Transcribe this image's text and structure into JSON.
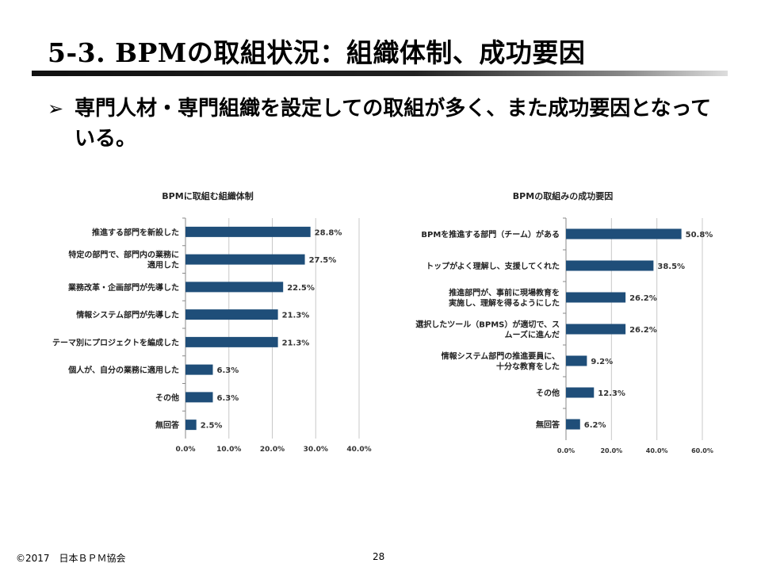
{
  "header": {
    "title": "5-3. BPMの取組状況：組織体制、成功要因"
  },
  "bullet": {
    "marker": "➢",
    "text": "専門人材・専門組織を設定しての取組が多く、また成功要因となっている。"
  },
  "chart_data": [
    {
      "type": "bar",
      "orientation": "horizontal",
      "title": "BPMに取組む組織体制",
      "categories": [
        [
          "推進する部門を新設した"
        ],
        [
          "特定の部門で、部門内の業務に",
          "適用した"
        ],
        [
          "業務改革・企画部門が先導した"
        ],
        [
          "情報システム部門が先導した"
        ],
        [
          "テーマ別にプロジェクトを編成した"
        ],
        [
          "個人が、自分の業務に適用した"
        ],
        [
          "その他"
        ],
        [
          "無回答"
        ]
      ],
      "values": [
        28.8,
        27.5,
        22.5,
        21.3,
        21.3,
        6.3,
        6.3,
        2.5
      ],
      "value_labels": [
        "28.8%",
        "27.5%",
        "22.5%",
        "21.3%",
        "21.3%",
        "6.3%",
        "6.3%",
        "2.5%"
      ],
      "xlim": [
        0,
        40
      ],
      "ticks": [
        0,
        10,
        20,
        30,
        40
      ],
      "tick_labels": [
        "0.0%",
        "10.0%",
        "20.0%",
        "30.0%",
        "40.0%"
      ],
      "grid": true,
      "bar_color": "#1f4e79"
    },
    {
      "type": "bar",
      "orientation": "horizontal",
      "title": "BPMの取組みの成功要因",
      "categories": [
        [
          "BPMを推進する部門（チーム）がある"
        ],
        [
          "トップがよく理解し、支援してくれた"
        ],
        [
          "推進部門が、事前に現場教育を",
          "実施し、理解を得るようにした"
        ],
        [
          "選択したツール（BPMS）が適切で、ス",
          "ムーズに進んだ"
        ],
        [
          "情報システム部門の推進要員に、",
          "十分な教育をした"
        ],
        [
          "その他"
        ],
        [
          "無回答"
        ]
      ],
      "values": [
        50.8,
        38.5,
        26.2,
        26.2,
        9.2,
        12.3,
        6.2
      ],
      "value_labels": [
        "50.8%",
        "38.5%",
        "26.2%",
        "26.2%",
        "9.2%",
        "12.3%",
        "6.2%"
      ],
      "xlim": [
        0,
        60
      ],
      "ticks": [
        0,
        20,
        40,
        60
      ],
      "tick_labels": [
        "0.0%",
        "20.0%",
        "40.0%",
        "60.0%"
      ],
      "grid": true,
      "bar_color": "#1f4e79"
    }
  ],
  "footer": {
    "copyright": "©2017　日本ＢＰＭ協会",
    "page": "28"
  }
}
